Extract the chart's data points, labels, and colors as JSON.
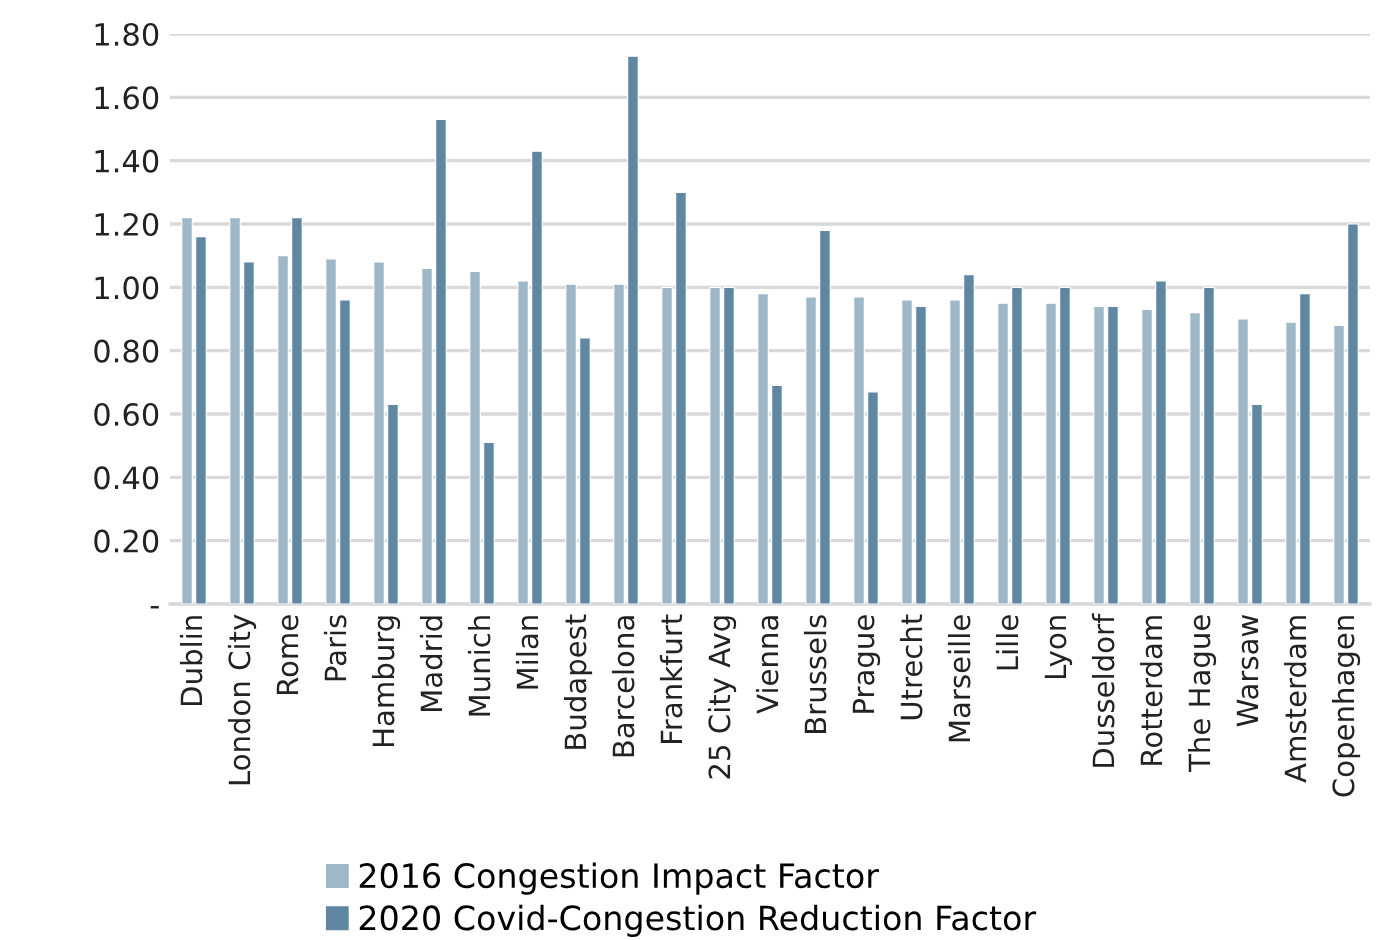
{
  "chart_data": {
    "type": "bar",
    "categories": [
      "Dublin",
      "London City",
      "Rome",
      "Paris",
      "Hamburg",
      "Madrid",
      "Munich",
      "Milan",
      "Budapest",
      "Barcelona",
      "Frankfurt",
      "25 City Avg",
      "Vienna",
      "Brussels",
      "Prague",
      "Utrecht",
      "Marseille",
      "Lille",
      "Lyon",
      "Dusseldorf",
      "Rotterdam",
      "The Hague",
      "Warsaw",
      "Amsterdam",
      "Copenhagen"
    ],
    "series": [
      {
        "name": "2016 Congestion Impact Factor",
        "color": "#9fb8c8",
        "values": [
          1.22,
          1.22,
          1.1,
          1.09,
          1.08,
          1.06,
          1.05,
          1.02,
          1.01,
          1.01,
          1.0,
          1.0,
          0.98,
          0.97,
          0.97,
          0.96,
          0.96,
          0.95,
          0.95,
          0.94,
          0.93,
          0.92,
          0.9,
          0.89,
          0.88
        ]
      },
      {
        "name": "2020 Covid-Congestion Reduction Factor",
        "color": "#5f87a1",
        "values": [
          1.16,
          1.08,
          1.22,
          0.96,
          0.63,
          1.53,
          0.51,
          1.43,
          0.84,
          1.73,
          1.3,
          1.0,
          0.69,
          1.18,
          0.67,
          0.94,
          1.04,
          1.0,
          1.0,
          0.94,
          1.02,
          1.0,
          0.63,
          0.98,
          1.2
        ]
      }
    ],
    "ylim": [
      0,
      1.8
    ],
    "yticks": [
      {
        "value": 0,
        "label": "-"
      },
      {
        "value": 0.2,
        "label": "0.20"
      },
      {
        "value": 0.4,
        "label": "0.40"
      },
      {
        "value": 0.6,
        "label": "0.60"
      },
      {
        "value": 0.8,
        "label": "0.80"
      },
      {
        "value": 1.0,
        "label": "1.00"
      },
      {
        "value": 1.2,
        "label": "1.20"
      },
      {
        "value": 1.4,
        "label": "1.40"
      },
      {
        "value": 1.6,
        "label": "1.60"
      },
      {
        "value": 1.8,
        "label": "1.80"
      }
    ],
    "grid": "y",
    "legend": "bottom"
  }
}
